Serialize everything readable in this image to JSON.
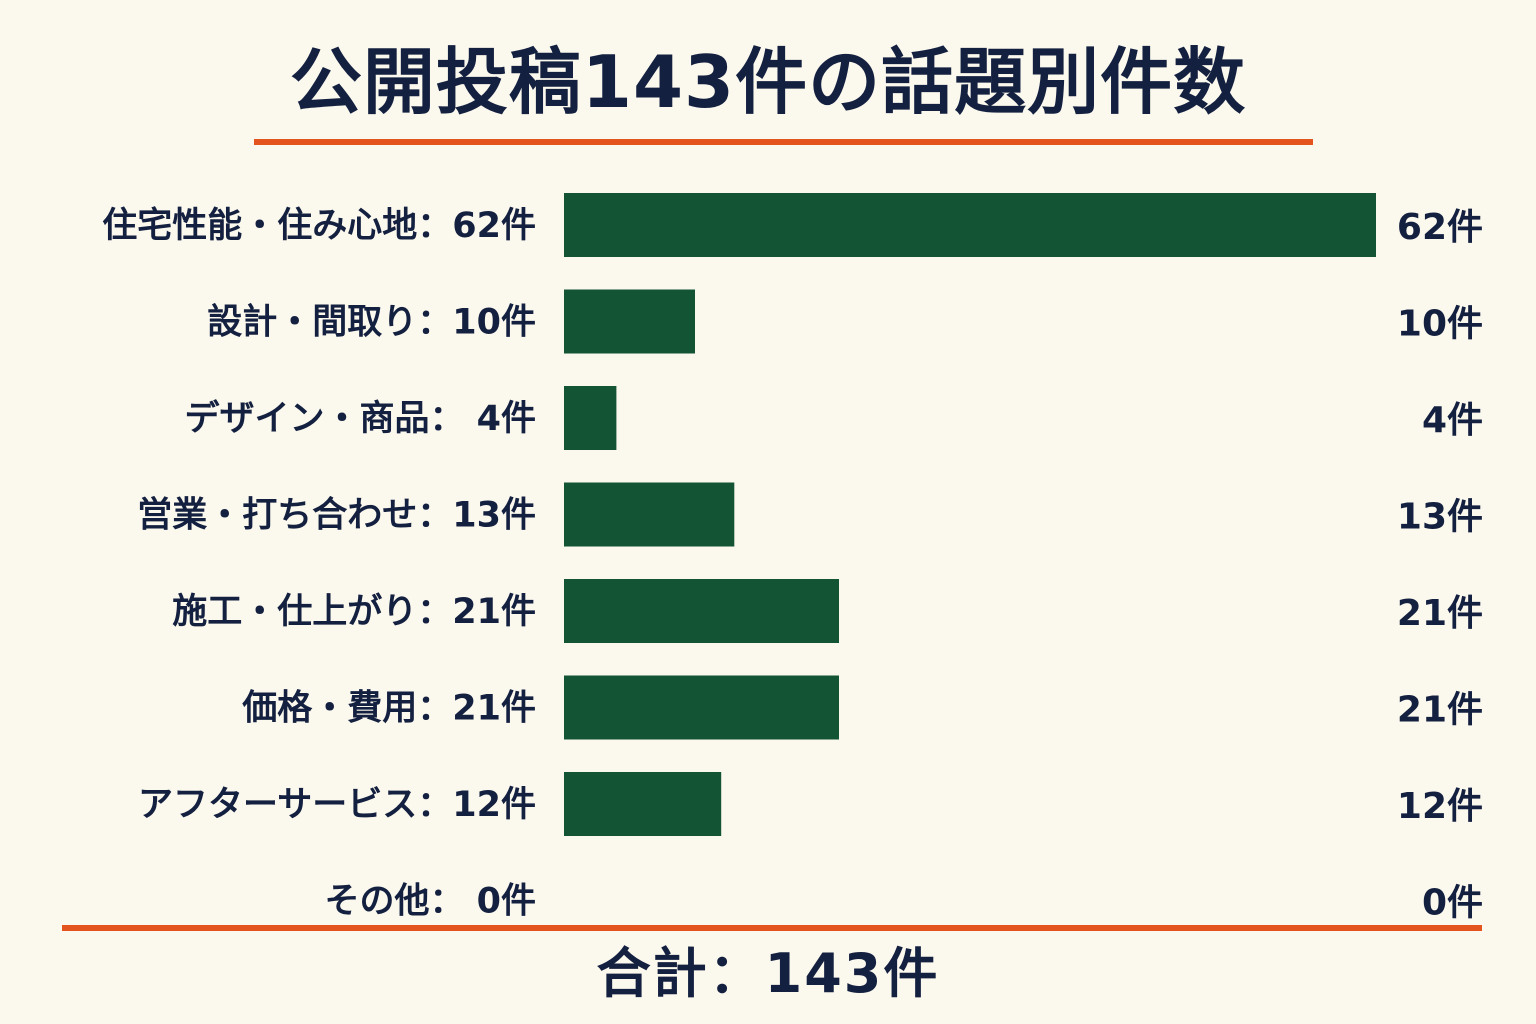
{
  "title": "公開投稿143件の話題別件数",
  "total_label": "合計：143件",
  "colors": {
    "background": "#fbf8ee",
    "bar": "#135434",
    "accent_rule": "#e4541e",
    "text": "#14203f"
  },
  "chart_data": {
    "type": "bar",
    "orientation": "horizontal",
    "title": "公開投稿143件の話題別件数",
    "categories": [
      "住宅性能・住み心地：62件",
      "設計・間取り：10件",
      "デザイン・商品： 4件",
      "営業・打ち合わせ：13件",
      "施工・仕上がり：21件",
      "価格・費用：21件",
      "アフターサービス：12件",
      "その他： 0件"
    ],
    "values": [
      62,
      10,
      4,
      13,
      21,
      21,
      12,
      0
    ],
    "value_labels": [
      "62件",
      "10件",
      "4件",
      "13件",
      "21件",
      "21件",
      "12件",
      "0件"
    ],
    "xlim": [
      0,
      62
    ],
    "grid": false,
    "legend": "none",
    "total": 143
  }
}
